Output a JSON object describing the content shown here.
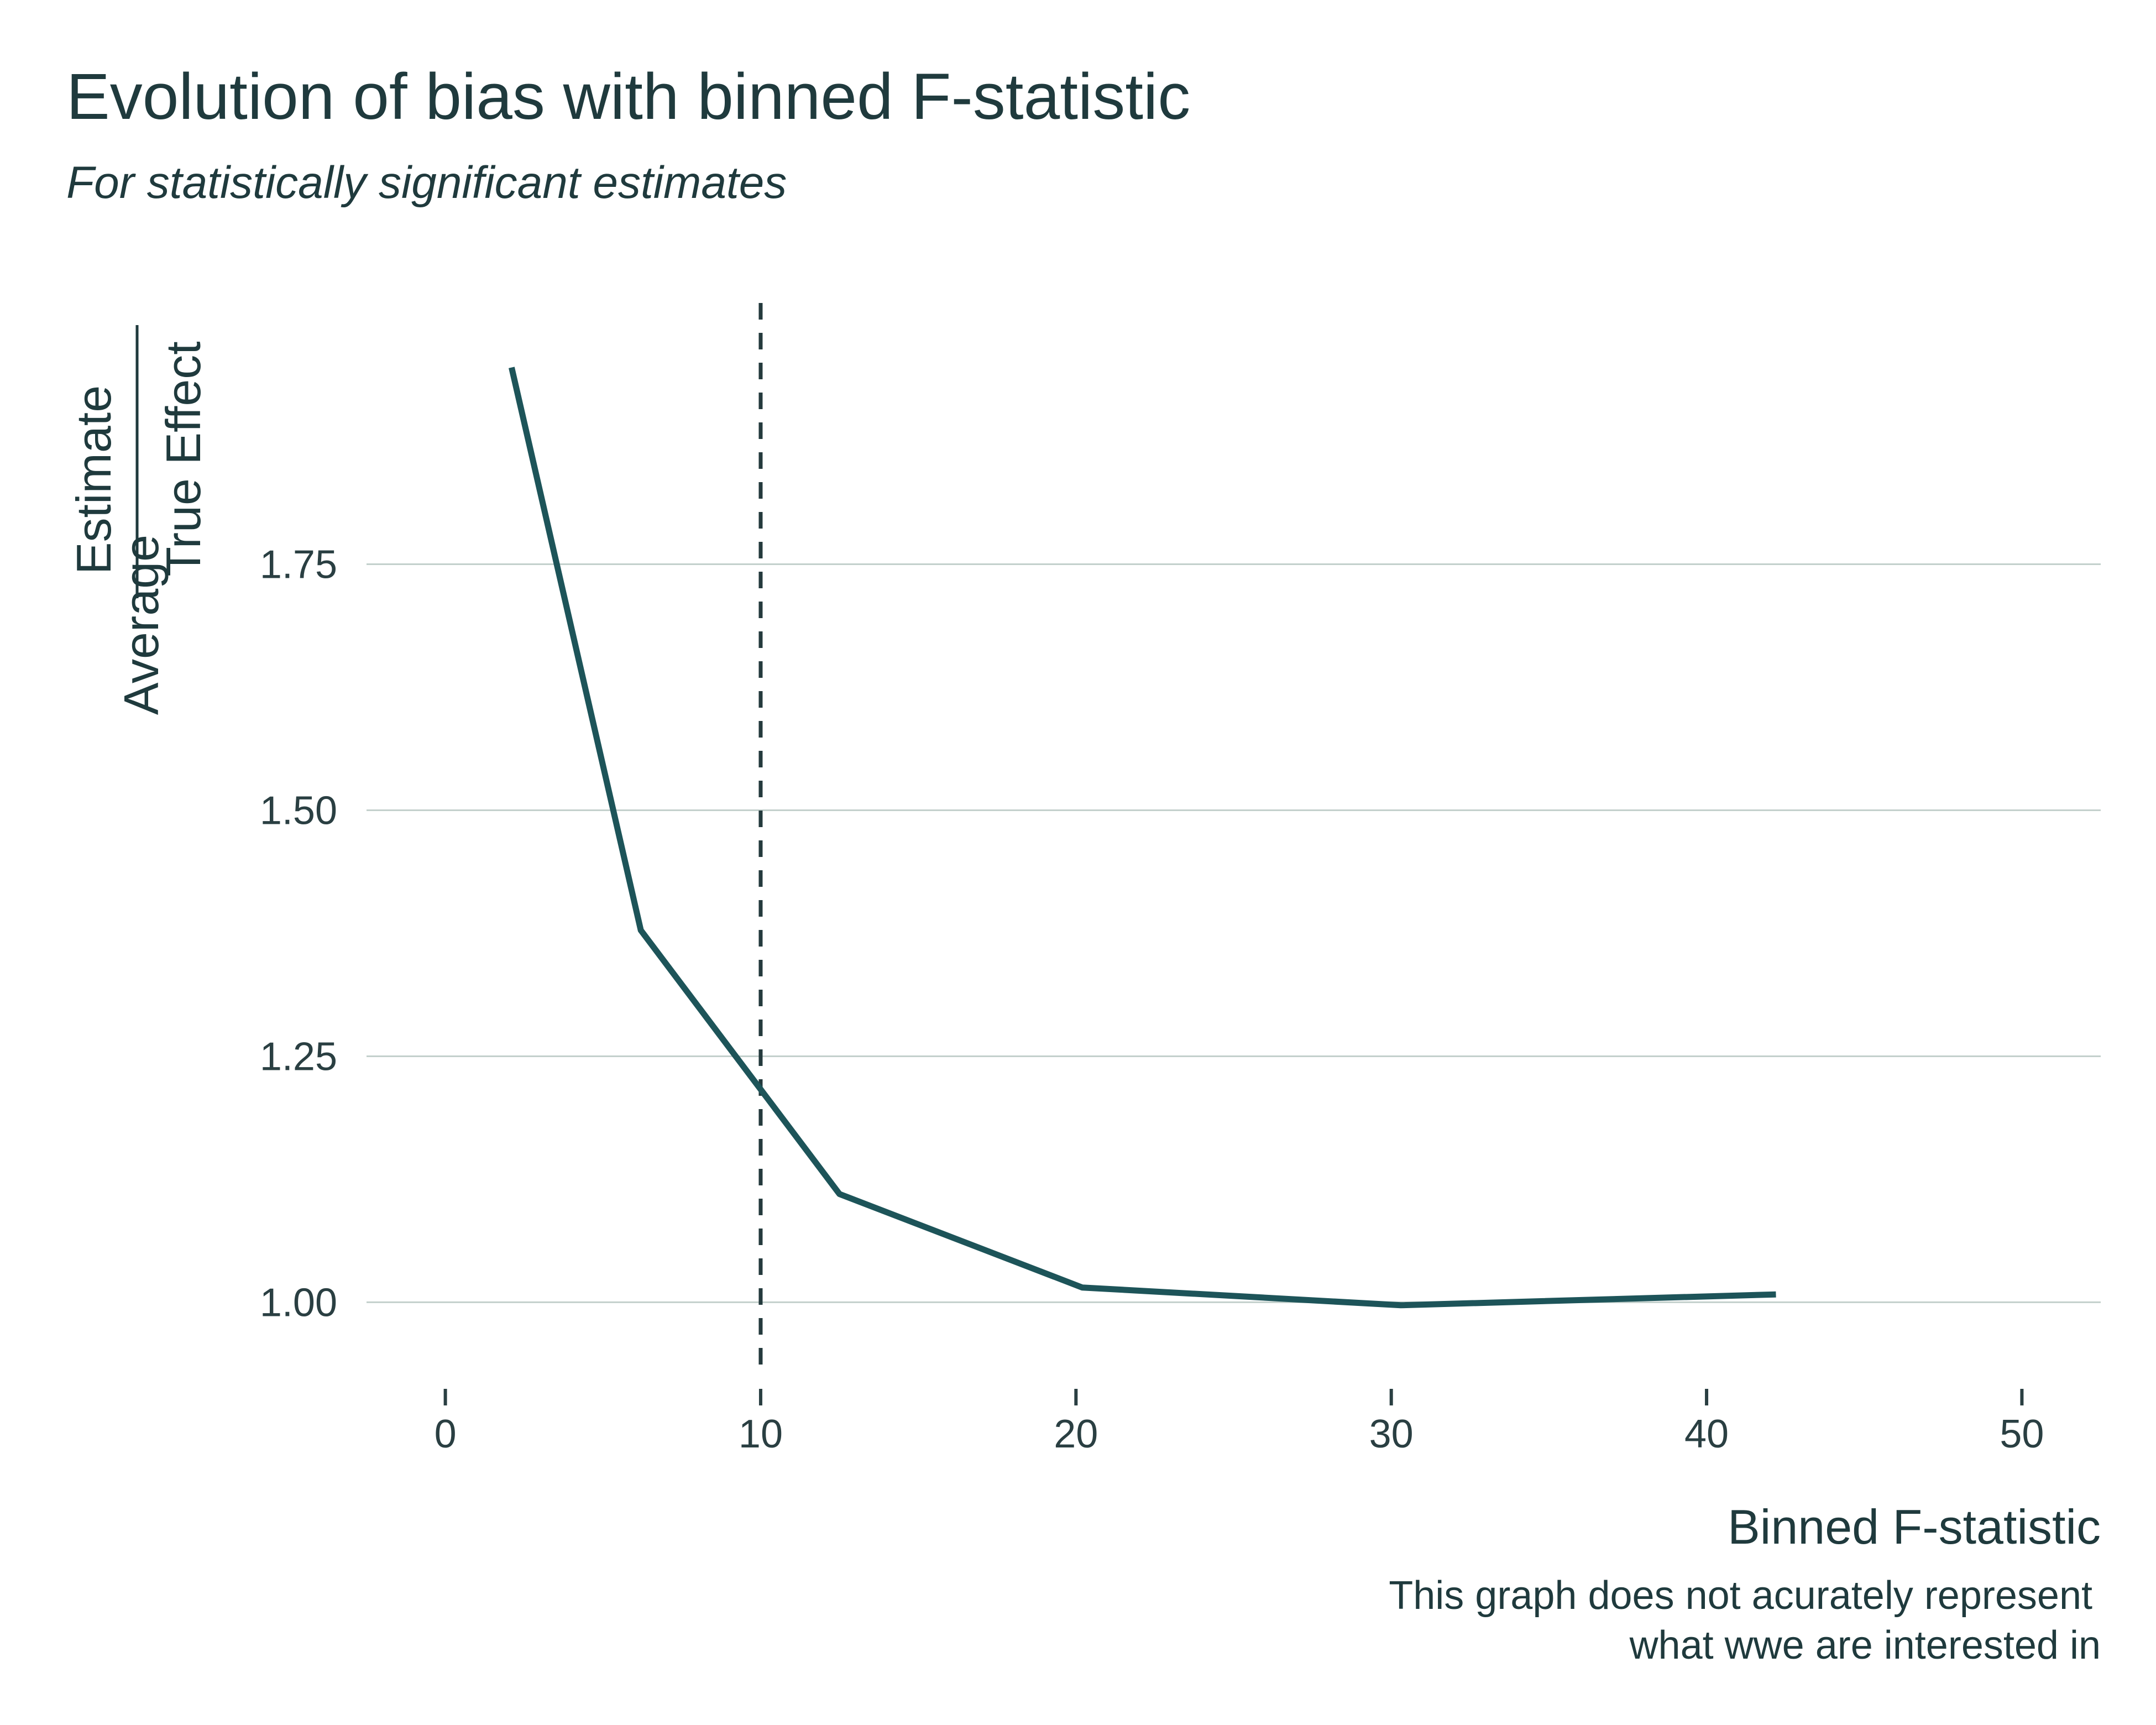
{
  "chart_data": {
    "type": "line",
    "title": "Evolution of bias with binned F-statistic",
    "subtitle": "For statistically significant estimates",
    "xlabel": "Binned F-statistic",
    "ylabel": {
      "prefix": "Average",
      "numerator": "Estimate",
      "denominator": "True Effect"
    },
    "caption": [
      "This graph does not acurately represent",
      "what wwe are interested in"
    ],
    "xlim": [
      -2.5,
      52.5
    ],
    "ylim": [
      0.93,
      2.02
    ],
    "x_ticks": [
      0,
      10,
      20,
      30,
      40,
      50
    ],
    "x_tick_labels": [
      "0",
      "10",
      "20",
      "30",
      "40",
      "50"
    ],
    "y_ticks": [
      1.0,
      1.25,
      1.5,
      1.75
    ],
    "y_tick_labels": [
      "1.00",
      "1.25",
      "1.50",
      "1.75"
    ],
    "grid": "horizontal",
    "series": [
      {
        "x": [
          2.1,
          6.2,
          12.5,
          20.2,
          30.3,
          42.2
        ],
        "y": [
          1.95,
          1.378,
          1.11,
          1.015,
          0.997,
          1.008
        ],
        "color": "#1d5459"
      }
    ],
    "vline": {
      "x": 10,
      "style": "dashed",
      "color": "#243a3d"
    }
  }
}
